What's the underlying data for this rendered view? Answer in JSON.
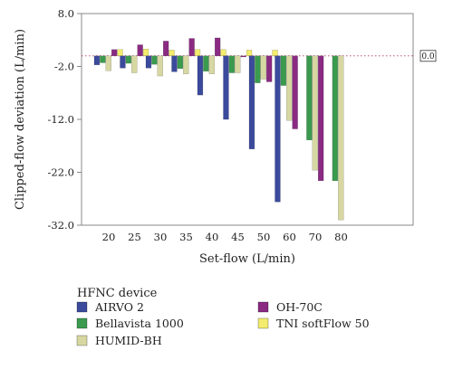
{
  "chart_data": {
    "type": "bar",
    "xlabel": "Set-flow (L/min)",
    "ylabel": "Clipped-flow deviation (L/min)",
    "categories": [
      "20",
      "25",
      "30",
      "35",
      "40",
      "45",
      "50",
      "60",
      "70",
      "80"
    ],
    "ylim": [
      -32,
      8
    ],
    "yticks": [
      8.0,
      -2.0,
      -12.0,
      -22.0,
      -32.0
    ],
    "ytick_labels": [
      "8.0",
      "-2.0",
      "-12.0",
      "-22.0",
      "-32.0"
    ],
    "reference_line": {
      "value": 0,
      "label": "0.0",
      "style": "dotted",
      "color": "#c0506a"
    },
    "grid": false,
    "legend": {
      "title": "HFNC device",
      "placement": "bottom"
    },
    "series": [
      {
        "name": "AIRVO 2",
        "color": "#3b4a9c",
        "values": [
          -1.7,
          -2.3,
          -2.3,
          -3.0,
          -7.4,
          -12.0,
          -17.6,
          -27.6,
          null,
          null
        ]
      },
      {
        "name": "Bellavista 1000",
        "color": "#3a9a4e",
        "values": [
          -1.3,
          -1.4,
          -1.6,
          -2.4,
          -2.9,
          -3.2,
          -5.1,
          -5.6,
          -15.9,
          -23.6
        ]
      },
      {
        "name": "HUMID-BH",
        "color": "#d7d7a2",
        "values": [
          -2.8,
          -3.2,
          -3.8,
          -3.4,
          -3.4,
          -3.2,
          -4.4,
          -12.2,
          -21.6,
          -31.0
        ]
      },
      {
        "name": "OH-70C",
        "color": "#8a2a82",
        "values": [
          1.2,
          2.1,
          2.8,
          3.3,
          3.4,
          -0.2,
          -4.9,
          -13.8,
          -23.6,
          null
        ]
      },
      {
        "name": "TNI softFlow 50",
        "color": "#f3ec6d",
        "values": [
          1.2,
          1.3,
          1.1,
          1.2,
          1.2,
          1.1,
          1.1,
          null,
          null,
          null
        ]
      }
    ]
  }
}
